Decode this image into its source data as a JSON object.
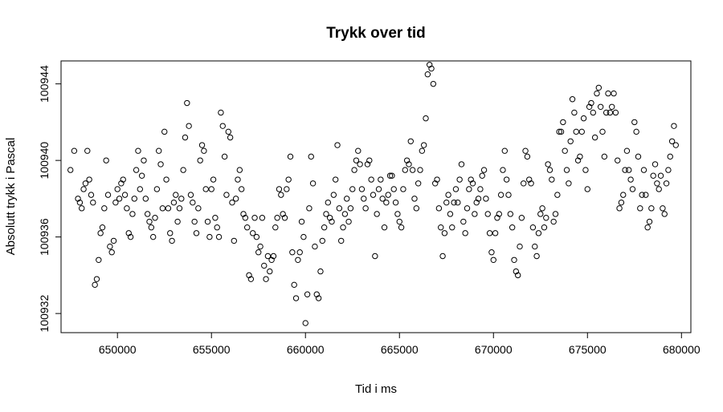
{
  "chart_data": {
    "type": "scatter",
    "title": "Trykk over tid",
    "xlabel": "Tid i ms",
    "ylabel": "Absolutt trykk i Pascal",
    "xlim": [
      647000,
      680500
    ],
    "ylim": [
      100931,
      100945.2
    ],
    "xticks": [
      650000,
      655000,
      660000,
      665000,
      670000,
      675000,
      680000
    ],
    "yticks": [
      100932,
      100936,
      100940,
      100944
    ],
    "grid": false,
    "marker": "open-circle",
    "colors": {
      "points": "#000000",
      "frame": "#000000",
      "background": "#ffffff"
    },
    "points": [
      [
        647500,
        100939.5
      ],
      [
        647700,
        100940.5
      ],
      [
        647900,
        100938
      ],
      [
        648000,
        100937.8
      ],
      [
        648100,
        100937.5
      ],
      [
        648200,
        100938.5
      ],
      [
        648300,
        100938.8
      ],
      [
        648400,
        100940.5
      ],
      [
        648500,
        100939
      ],
      [
        648600,
        100938.2
      ],
      [
        648700,
        100937.8
      ],
      [
        648800,
        100933.5
      ],
      [
        648900,
        100933.8
      ],
      [
        649000,
        100934.8
      ],
      [
        649100,
        100936.2
      ],
      [
        649200,
        100936.5
      ],
      [
        649300,
        100937.5
      ],
      [
        649400,
        100940
      ],
      [
        649500,
        100938.2
      ],
      [
        649600,
        100935.5
      ],
      [
        649700,
        100935.2
      ],
      [
        649800,
        100935.8
      ],
      [
        649900,
        100937.8
      ],
      [
        650000,
        100938.5
      ],
      [
        650100,
        100938
      ],
      [
        650200,
        100938.8
      ],
      [
        650300,
        100939
      ],
      [
        650400,
        100938.2
      ],
      [
        650500,
        100937.5
      ],
      [
        650600,
        100936.2
      ],
      [
        650700,
        100936
      ],
      [
        650800,
        100937.2
      ],
      [
        650900,
        100938
      ],
      [
        651000,
        100939.5
      ],
      [
        651100,
        100940.5
      ],
      [
        651200,
        100938.5
      ],
      [
        651300,
        100939.2
      ],
      [
        651400,
        100940
      ],
      [
        651500,
        100938
      ],
      [
        651600,
        100937.2
      ],
      [
        651700,
        100936.8
      ],
      [
        651800,
        100936.5
      ],
      [
        651900,
        100936
      ],
      [
        652000,
        100937
      ],
      [
        652100,
        100938.5
      ],
      [
        652200,
        100940.5
      ],
      [
        652300,
        100939.8
      ],
      [
        652400,
        100937.5
      ],
      [
        652500,
        100941.5
      ],
      [
        652600,
        100939
      ],
      [
        652700,
        100937.5
      ],
      [
        652800,
        100936.2
      ],
      [
        652900,
        100935.8
      ],
      [
        653000,
        100937.8
      ],
      [
        653100,
        100938.2
      ],
      [
        653200,
        100936.8
      ],
      [
        653300,
        100937.5
      ],
      [
        653400,
        100938
      ],
      [
        653500,
        100939.5
      ],
      [
        653600,
        100941.2
      ],
      [
        653700,
        100943
      ],
      [
        653800,
        100941.8
      ],
      [
        653900,
        100938.2
      ],
      [
        654000,
        100937.8
      ],
      [
        654100,
        100936.8
      ],
      [
        654200,
        100936.2
      ],
      [
        654300,
        100937.5
      ],
      [
        654400,
        100940
      ],
      [
        654500,
        100940.8
      ],
      [
        654600,
        100940.5
      ],
      [
        654700,
        100938.5
      ],
      [
        654800,
        100936.8
      ],
      [
        654900,
        100936
      ],
      [
        655000,
        100938.5
      ],
      [
        655100,
        100939
      ],
      [
        655200,
        100937
      ],
      [
        655300,
        100936.5
      ],
      [
        655400,
        100936
      ],
      [
        655500,
        100942.5
      ],
      [
        655600,
        100941.8
      ],
      [
        655700,
        100940.2
      ],
      [
        655800,
        100938.2
      ],
      [
        655900,
        100941.5
      ],
      [
        656000,
        100941.2
      ],
      [
        656100,
        100937.8
      ],
      [
        656200,
        100935.8
      ],
      [
        656300,
        100938
      ],
      [
        656400,
        100939
      ],
      [
        656500,
        100939.5
      ],
      [
        656600,
        100938.5
      ],
      [
        656700,
        100937.2
      ],
      [
        656800,
        100937
      ],
      [
        656900,
        100936.5
      ],
      [
        657000,
        100934
      ],
      [
        657100,
        100933.8
      ],
      [
        657200,
        100936.2
      ],
      [
        657300,
        100937
      ],
      [
        657400,
        100936
      ],
      [
        657500,
        100935.2
      ],
      [
        657600,
        100935.5
      ],
      [
        657700,
        100937
      ],
      [
        657800,
        100934.5
      ],
      [
        657900,
        100933.8
      ],
      [
        658000,
        100935
      ],
      [
        658100,
        100934.2
      ],
      [
        658200,
        100934.8
      ],
      [
        658300,
        100935
      ],
      [
        658400,
        100936.5
      ],
      [
        658500,
        100937
      ],
      [
        658600,
        100938.5
      ],
      [
        658700,
        100938.2
      ],
      [
        658800,
        100937.2
      ],
      [
        658900,
        100937
      ],
      [
        659000,
        100938.5
      ],
      [
        659100,
        100939
      ],
      [
        659200,
        100940.2
      ],
      [
        659300,
        100935.2
      ],
      [
        659400,
        100933.5
      ],
      [
        659500,
        100932.8
      ],
      [
        659600,
        100934.8
      ],
      [
        659700,
        100935.2
      ],
      [
        659800,
        100936.8
      ],
      [
        659900,
        100936
      ],
      [
        660000,
        100931.5
      ],
      [
        660100,
        100933
      ],
      [
        660200,
        100937.5
      ],
      [
        660300,
        100940.2
      ],
      [
        660400,
        100938.8
      ],
      [
        660500,
        100935.5
      ],
      [
        660600,
        100933
      ],
      [
        660700,
        100932.8
      ],
      [
        660800,
        100934.2
      ],
      [
        660900,
        100935.8
      ],
      [
        661000,
        100936.5
      ],
      [
        661100,
        100937.2
      ],
      [
        661200,
        100937.8
      ],
      [
        661300,
        100937
      ],
      [
        661400,
        100936.8
      ],
      [
        661500,
        100938.2
      ],
      [
        661600,
        100939
      ],
      [
        661700,
        100940.8
      ],
      [
        661800,
        100937.5
      ],
      [
        661900,
        100935.8
      ],
      [
        662000,
        100936.5
      ],
      [
        662100,
        100937.2
      ],
      [
        662200,
        100938
      ],
      [
        662300,
        100936.8
      ],
      [
        662400,
        100937.5
      ],
      [
        662500,
        100938.5
      ],
      [
        662600,
        100939.5
      ],
      [
        662700,
        100940
      ],
      [
        662800,
        100940.5
      ],
      [
        662900,
        100939.8
      ],
      [
        663000,
        100938.5
      ],
      [
        663100,
        100938
      ],
      [
        663200,
        100937.5
      ],
      [
        663300,
        100939.8
      ],
      [
        663400,
        100940
      ],
      [
        663500,
        100939
      ],
      [
        663600,
        100938.2
      ],
      [
        663700,
        100935
      ],
      [
        663800,
        100937.2
      ],
      [
        663900,
        100938.5
      ],
      [
        664000,
        100939
      ],
      [
        664100,
        100938
      ],
      [
        664200,
        100936.5
      ],
      [
        664300,
        100937.8
      ],
      [
        664400,
        100938.2
      ],
      [
        664500,
        100939.2
      ],
      [
        664600,
        100939.2
      ],
      [
        664700,
        100938.5
      ],
      [
        664800,
        100937.8
      ],
      [
        664900,
        100937.2
      ],
      [
        665000,
        100936.8
      ],
      [
        665100,
        100936.5
      ],
      [
        665200,
        100938.5
      ],
      [
        665300,
        100939.5
      ],
      [
        665400,
        100940
      ],
      [
        665500,
        100939.8
      ],
      [
        665600,
        100941
      ],
      [
        665700,
        100939.5
      ],
      [
        665800,
        100938
      ],
      [
        665900,
        100937.5
      ],
      [
        666000,
        100938.8
      ],
      [
        666100,
        100939.5
      ],
      [
        666200,
        100940.5
      ],
      [
        666300,
        100940.8
      ],
      [
        666400,
        100942.2
      ],
      [
        666500,
        100944.5
      ],
      [
        666600,
        100945
      ],
      [
        666700,
        100944.8
      ],
      [
        666800,
        100944
      ],
      [
        666900,
        100938.8
      ],
      [
        667000,
        100939
      ],
      [
        667100,
        100937.5
      ],
      [
        667200,
        100936.5
      ],
      [
        667300,
        100935
      ],
      [
        667400,
        100936.2
      ],
      [
        667500,
        100937.8
      ],
      [
        667600,
        100938.2
      ],
      [
        667700,
        100937.2
      ],
      [
        667800,
        100936.5
      ],
      [
        667900,
        100937.8
      ],
      [
        668000,
        100938.5
      ],
      [
        668100,
        100937.8
      ],
      [
        668200,
        100939
      ],
      [
        668300,
        100939.8
      ],
      [
        668400,
        100936.8
      ],
      [
        668500,
        100936.2
      ],
      [
        668600,
        100937.5
      ],
      [
        668700,
        100938.5
      ],
      [
        668800,
        100939
      ],
      [
        668900,
        100938.8
      ],
      [
        669000,
        100937.2
      ],
      [
        669100,
        100937.8
      ],
      [
        669200,
        100938
      ],
      [
        669300,
        100938.5
      ],
      [
        669400,
        100939.2
      ],
      [
        669500,
        100939.5
      ],
      [
        669600,
        100938
      ],
      [
        669700,
        100937.2
      ],
      [
        669800,
        100936.2
      ],
      [
        669900,
        100935.2
      ],
      [
        670000,
        100934.8
      ],
      [
        670100,
        100936.2
      ],
      [
        670200,
        100937
      ],
      [
        670300,
        100937.2
      ],
      [
        670400,
        100938.2
      ],
      [
        670500,
        100939.5
      ],
      [
        670600,
        100940.5
      ],
      [
        670700,
        100939
      ],
      [
        670800,
        100938.2
      ],
      [
        670900,
        100937.2
      ],
      [
        671000,
        100936.5
      ],
      [
        671100,
        100934.8
      ],
      [
        671200,
        100934.2
      ],
      [
        671300,
        100934
      ],
      [
        671400,
        100935.5
      ],
      [
        671500,
        100937
      ],
      [
        671600,
        100938.8
      ],
      [
        671700,
        100940.5
      ],
      [
        671800,
        100940.2
      ],
      [
        671900,
        100939
      ],
      [
        672000,
        100938.8
      ],
      [
        672100,
        100936.5
      ],
      [
        672200,
        100935.5
      ],
      [
        672300,
        100935
      ],
      [
        672400,
        100936.2
      ],
      [
        672500,
        100937.2
      ],
      [
        672600,
        100937.5
      ],
      [
        672700,
        100936.5
      ],
      [
        672800,
        100937
      ],
      [
        672900,
        100939.8
      ],
      [
        673000,
        100939.5
      ],
      [
        673100,
        100939
      ],
      [
        673200,
        100936.8
      ],
      [
        673300,
        100937.2
      ],
      [
        673400,
        100938.2
      ],
      [
        673500,
        100941.5
      ],
      [
        673600,
        100941.5
      ],
      [
        673700,
        100942
      ],
      [
        673800,
        100940.5
      ],
      [
        673900,
        100939.5
      ],
      [
        674000,
        100938.8
      ],
      [
        674100,
        100941
      ],
      [
        674200,
        100943.2
      ],
      [
        674300,
        100942.5
      ],
      [
        674400,
        100941.5
      ],
      [
        674500,
        100940
      ],
      [
        674600,
        100940.2
      ],
      [
        674700,
        100941.5
      ],
      [
        674800,
        100942.2
      ],
      [
        674900,
        100939.5
      ],
      [
        675000,
        100938.5
      ],
      [
        675100,
        100942.8
      ],
      [
        675200,
        100943
      ],
      [
        675300,
        100942.5
      ],
      [
        675400,
        100941.2
      ],
      [
        675500,
        100943.5
      ],
      [
        675600,
        100943.8
      ],
      [
        675700,
        100942.8
      ],
      [
        675800,
        100941.5
      ],
      [
        675900,
        100940.2
      ],
      [
        676000,
        100942.5
      ],
      [
        676100,
        100943.5
      ],
      [
        676200,
        100942.5
      ],
      [
        676300,
        100942.8
      ],
      [
        676400,
        100943.5
      ],
      [
        676500,
        100942.5
      ],
      [
        676600,
        100940
      ],
      [
        676700,
        100937.5
      ],
      [
        676800,
        100937.8
      ],
      [
        676900,
        100938.2
      ],
      [
        677000,
        100939.5
      ],
      [
        677100,
        100940.5
      ],
      [
        677200,
        100939.5
      ],
      [
        677300,
        100939
      ],
      [
        677400,
        100938.5
      ],
      [
        677500,
        100942
      ],
      [
        677600,
        100941.5
      ],
      [
        677700,
        100940.2
      ],
      [
        677800,
        100937.5
      ],
      [
        677900,
        100938.2
      ],
      [
        678000,
        100939.5
      ],
      [
        678100,
        100938.2
      ],
      [
        678200,
        100936.5
      ],
      [
        678300,
        100936.8
      ],
      [
        678400,
        100937.5
      ],
      [
        678500,
        100939.2
      ],
      [
        678600,
        100939.8
      ],
      [
        678700,
        100938.8
      ],
      [
        678800,
        100938.5
      ],
      [
        678900,
        100939.2
      ],
      [
        679000,
        100937.5
      ],
      [
        679100,
        100937.2
      ],
      [
        679200,
        100938.8
      ],
      [
        679300,
        100939.5
      ],
      [
        679400,
        100940.2
      ],
      [
        679500,
        100941
      ],
      [
        679600,
        100941.8
      ],
      [
        679700,
        100940.8
      ]
    ]
  }
}
